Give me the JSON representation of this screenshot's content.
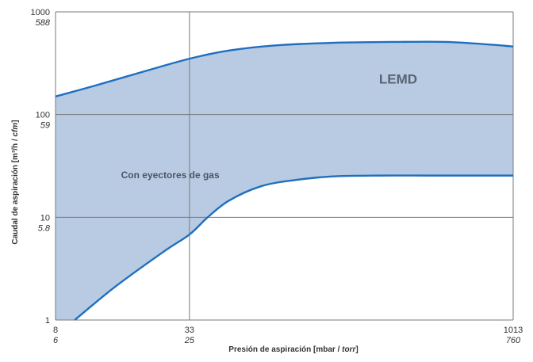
{
  "chart_data": {
    "type": "area",
    "xlabel_main": "Presión de aspiración [mbar / ",
    "xlabel_unit_italic": "torr",
    "xlabel_close": "]",
    "ylabel_main": "Caudal de aspiración [m³/h / ",
    "ylabel_unit_italic": "cfm",
    "ylabel_close": "]",
    "x_ticks": [
      {
        "value": 8,
        "label": "8",
        "sublabel": "6"
      },
      {
        "value": 33,
        "label": "33",
        "sublabel": "25"
      },
      {
        "value": 1013,
        "label": "1013",
        "sublabel": "760"
      }
    ],
    "y_ticks": [
      {
        "value": 1,
        "label": "1",
        "sublabel": ""
      },
      {
        "value": 10,
        "label": "10",
        "sublabel": "5.8"
      },
      {
        "value": 100,
        "label": "100",
        "sublabel": "59"
      },
      {
        "value": 1000,
        "label": "1000",
        "sublabel": "588"
      }
    ],
    "xscale": "log",
    "yscale": "log",
    "xlim": [
      8,
      1013
    ],
    "ylim": [
      1,
      1000
    ],
    "grid": true,
    "series": [
      {
        "role": "upper",
        "x": [
          8,
          12,
          20,
          33,
          50,
          80,
          150,
          300,
          500,
          800,
          1013
        ],
        "y": [
          150,
          190,
          260,
          350,
          420,
          470,
          500,
          510,
          510,
          480,
          460
        ]
      },
      {
        "role": "lower",
        "x": [
          9.8,
          15,
          25,
          33,
          40,
          50,
          70,
          100,
          150,
          250,
          400,
          700,
          1013
        ],
        "y": [
          1,
          2.1,
          4.6,
          6.8,
          10,
          14.5,
          20,
          23,
          25,
          25.5,
          25.5,
          25.5,
          25.5
        ]
      }
    ],
    "fill_color": "#b8cbe3",
    "line_color": "#1f6fbf",
    "grid_color": "#7a7a7a",
    "annotations": [
      {
        "text": "LEMD",
        "x": 300,
        "y": 200,
        "style": "large"
      },
      {
        "text": "Con eyectores de gas",
        "x": 16,
        "y": 24,
        "style": "small"
      }
    ]
  }
}
